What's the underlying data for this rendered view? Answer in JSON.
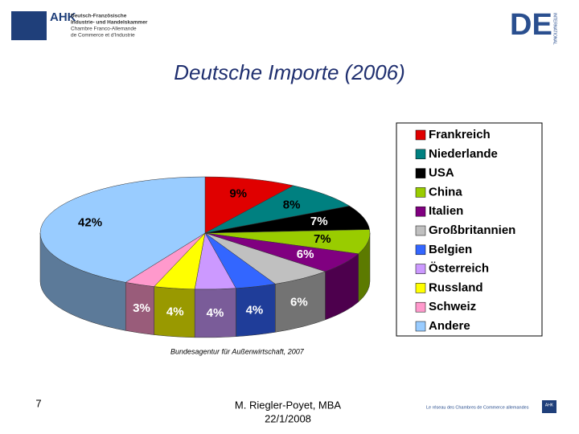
{
  "slide": {
    "logo_left": {
      "mark": "AHK",
      "lines": [
        "Deutsch-Französische",
        "Industrie- und Handelskammer",
        "Chambre Franco-Allemande",
        "de Commerce et d'Industrie"
      ]
    },
    "logo_right": {
      "mark": "DE",
      "tag": "INTERNATIONAL"
    },
    "source": "Bundesagentur für Außenwirtschaft, 2007",
    "page_number": "7",
    "author": "M. Riegler-Poyet, MBA",
    "date": "22/1/2008",
    "footer_tagline": "Le réseau des Chambres de Commerce allemandes",
    "footer_mark": "AHK"
  },
  "chart_data": {
    "type": "pie",
    "title": "Deutsche Importe (2006)",
    "categories": [
      "Frankreich",
      "Niederlande",
      "USA",
      "China",
      "Italien",
      "Großbritannien",
      "Belgien",
      "Österreich",
      "Russland",
      "Schweiz",
      "Andere"
    ],
    "values": [
      9,
      8,
      7,
      7,
      6,
      6,
      4,
      4,
      4,
      3,
      42
    ],
    "value_labels": [
      "9%",
      "8%",
      "7%",
      "7%",
      "6%",
      "6%",
      "4%",
      "4%",
      "4%",
      "3%",
      "42%"
    ],
    "colors": [
      "#e00000",
      "#008080",
      "#000000",
      "#99cc00",
      "#800080",
      "#c0c0c0",
      "#3366ff",
      "#cc99ff",
      "#ffff00",
      "#ff99cc",
      "#99ccff"
    ],
    "legend": "right"
  }
}
